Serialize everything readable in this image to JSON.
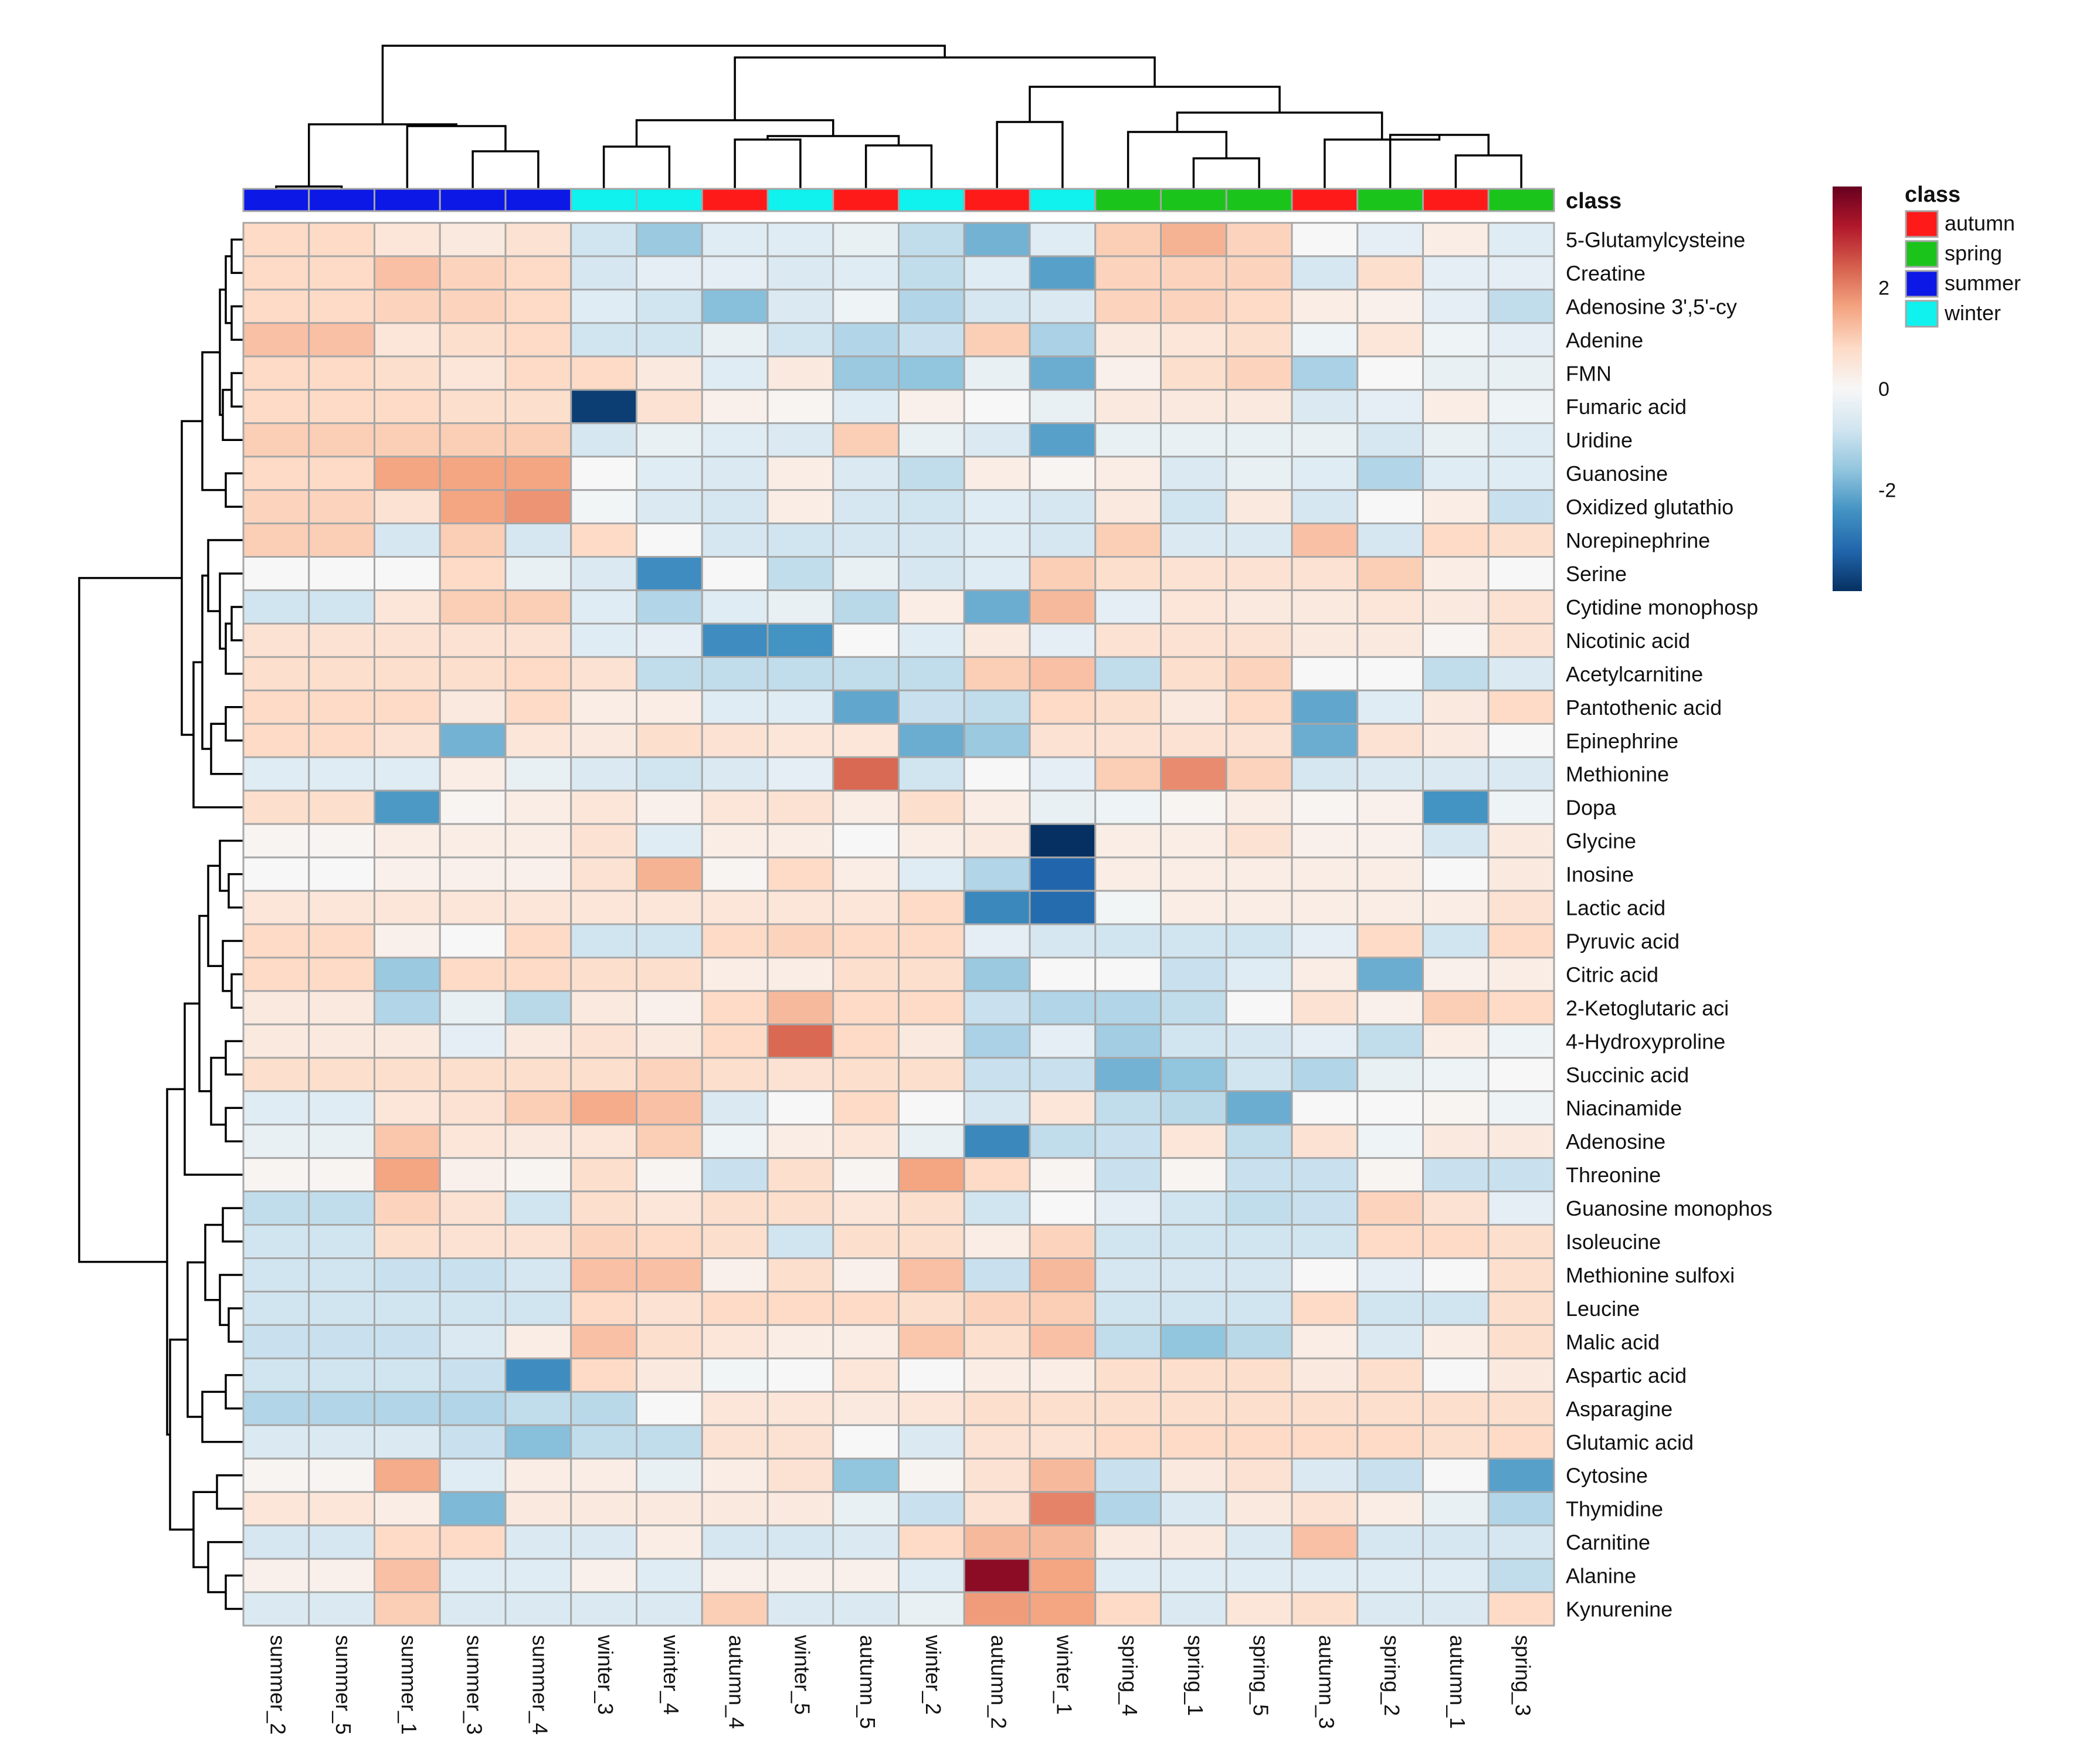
{
  "chart_data": {
    "type": "heatmap",
    "title": "",
    "columns": [
      "summer_2",
      "summer_5",
      "summer_1",
      "summer_3",
      "summer_4",
      "winter_3",
      "winter_4",
      "autumn_4",
      "winter_5",
      "autumn_5",
      "winter_2",
      "autumn_2",
      "winter_1",
      "spring_4",
      "spring_1",
      "spring_5",
      "autumn_3",
      "spring_2",
      "autumn_1",
      "spring_3"
    ],
    "column_classes": [
      "summer",
      "summer",
      "summer",
      "summer",
      "summer",
      "winter",
      "winter",
      "autumn",
      "winter",
      "autumn",
      "winter",
      "autumn",
      "winter",
      "spring",
      "spring",
      "spring",
      "autumn",
      "spring",
      "autumn",
      "spring"
    ],
    "rows": [
      "5-Glutamylcysteine",
      "Creatine",
      "Adenosine 3',5'-cy",
      "Adenine",
      "FMN",
      "Fumaric acid",
      "Uridine",
      "Guanosine",
      "Oxidized glutathio",
      "Norepinephrine",
      "Serine",
      "Cytidine monophosp",
      "Nicotinic acid",
      "Acetylcarnitine",
      "Pantothenic acid",
      "Epinephrine",
      "Methionine",
      "Dopa",
      "Glycine",
      "Inosine",
      "Lactic acid",
      "Pyruvic acid",
      "Citric acid",
      "2-Ketoglutaric aci",
      "4-Hydroxyproline",
      "Succinic acid",
      "Niacinamide",
      "Adenosine",
      "Threonine",
      "Guanosine monophos",
      "Isoleucine",
      "Methionine sulfoxi",
      "Leucine",
      "Malic acid",
      "Aspartic acid",
      "Asparagine",
      "Glutamic acid",
      "Cytosine",
      "Thymidine",
      "Carnitine",
      "Alanine",
      "Kynurenine"
    ],
    "values": [
      [
        0.8,
        0.8,
        0.5,
        0.4,
        0.6,
        -0.8,
        -1.5,
        -0.5,
        -0.5,
        -0.3,
        -1.0,
        -1.9,
        -0.5,
        1.0,
        1.4,
        0.9,
        0,
        -0.4,
        0.3,
        -0.5
      ],
      [
        0.8,
        0.8,
        1.2,
        0.9,
        0.8,
        -0.7,
        -0.4,
        -0.4,
        -0.6,
        -0.5,
        -1.0,
        -0.5,
        -2.2,
        0.9,
        0.9,
        0.9,
        -0.7,
        0.7,
        -0.4,
        -0.4
      ],
      [
        0.8,
        0.8,
        0.9,
        0.9,
        0.8,
        -0.5,
        -0.8,
        -1.7,
        -0.6,
        -0.2,
        -1.2,
        -0.7,
        -0.6,
        0.9,
        0.9,
        0.8,
        0.3,
        0.2,
        -0.4,
        -1.0
      ],
      [
        1.2,
        1.2,
        0.5,
        0.7,
        0.8,
        -0.8,
        -0.8,
        -0.3,
        -0.8,
        -1.2,
        -0.9,
        1.0,
        -1.3,
        0.4,
        0.5,
        0.7,
        -0.2,
        0.5,
        -0.2,
        -0.4
      ],
      [
        0.8,
        0.8,
        0.7,
        0.5,
        0.8,
        0.8,
        0.4,
        -0.5,
        0.4,
        -1.5,
        -1.6,
        -0.3,
        -2.0,
        0.2,
        0.7,
        0.9,
        -1.3,
        0,
        -0.3,
        -0.3
      ],
      [
        0.8,
        0.8,
        0.8,
        0.7,
        0.7,
        -3.8,
        0.6,
        0.2,
        0.1,
        -0.5,
        0.2,
        0,
        -0.3,
        0.4,
        0.4,
        0.4,
        -0.6,
        -0.4,
        0.3,
        -0.2
      ],
      [
        1.0,
        1.0,
        1.0,
        1.0,
        1.0,
        -0.7,
        -0.3,
        -0.5,
        -0.6,
        1.0,
        -0.3,
        -0.6,
        -2.2,
        -0.3,
        -0.3,
        -0.3,
        -0.3,
        -0.7,
        -0.3,
        -0.5
      ],
      [
        0.8,
        0.8,
        1.6,
        1.6,
        1.6,
        0,
        -0.5,
        -0.6,
        0.3,
        -0.6,
        -1.0,
        0.3,
        0.1,
        0.3,
        -0.6,
        -0.3,
        -0.5,
        -1.2,
        -0.5,
        -0.5
      ],
      [
        0.9,
        0.9,
        0.6,
        1.6,
        1.8,
        -0.1,
        -0.6,
        -0.7,
        0.3,
        -0.7,
        -0.8,
        -0.5,
        -0.7,
        0.4,
        -0.8,
        0.4,
        -0.7,
        0,
        0.3,
        -0.9
      ],
      [
        1.0,
        1.0,
        -0.7,
        1.0,
        -0.7,
        0.8,
        0,
        -0.7,
        -0.8,
        -0.7,
        -0.7,
        -0.5,
        -0.7,
        1.0,
        -0.6,
        -0.6,
        1.2,
        -0.7,
        0.8,
        0.7
      ],
      [
        0,
        0,
        0,
        0.8,
        -0.3,
        -0.6,
        -2.5,
        0,
        -1.0,
        -0.3,
        -0.7,
        -0.5,
        1.0,
        0.7,
        0.6,
        0.6,
        0.6,
        1.0,
        0.3,
        0
      ],
      [
        -0.8,
        -0.8,
        0.5,
        1.0,
        1.0,
        -0.5,
        -1.2,
        -0.5,
        -0.3,
        -1.1,
        0.3,
        -2.0,
        1.3,
        -0.4,
        0.5,
        0.4,
        0.4,
        0.5,
        0.4,
        0.6
      ],
      [
        0.6,
        0.6,
        0.6,
        0.6,
        0.6,
        -0.5,
        -0.4,
        -2.5,
        -2.4,
        0,
        -0.5,
        0.4,
        -0.4,
        0.6,
        0.6,
        0.6,
        0.4,
        0.4,
        0.1,
        0.6
      ],
      [
        0.7,
        0.7,
        0.7,
        0.7,
        0.8,
        0.6,
        -1.0,
        -1.0,
        -1.0,
        -1.0,
        -1.0,
        1.0,
        1.2,
        -1.0,
        0.7,
        0.9,
        0,
        0,
        -1.0,
        -0.6
      ],
      [
        0.8,
        0.8,
        0.8,
        0.4,
        0.8,
        0.3,
        0.3,
        -0.5,
        -0.5,
        -2.1,
        -0.9,
        -1.0,
        0.8,
        0.7,
        0.4,
        0.8,
        -2.1,
        -0.5,
        0.4,
        0.8
      ],
      [
        0.8,
        0.8,
        0.6,
        -1.9,
        0.5,
        0.4,
        0.7,
        0.6,
        0.5,
        0.5,
        -2.0,
        -1.5,
        0.6,
        0.6,
        0.6,
        0.6,
        -2.0,
        0.6,
        0.4,
        0
      ],
      [
        -0.5,
        -0.5,
        -0.5,
        0.3,
        -0.3,
        -0.6,
        -0.8,
        -0.6,
        -0.4,
        2.3,
        -0.8,
        0,
        -0.4,
        1.0,
        1.9,
        0.9,
        -0.7,
        -0.6,
        -0.6,
        -0.6
      ],
      [
        0.7,
        0.7,
        -2.3,
        0.1,
        0.3,
        0.5,
        0.2,
        0.5,
        0.6,
        0.3,
        0.7,
        0.3,
        -0.3,
        -0.2,
        0.1,
        0.3,
        0.1,
        0.2,
        -2.4,
        -0.2
      ],
      [
        0.1,
        0.1,
        0.3,
        0.3,
        0.3,
        0.6,
        -0.5,
        0.3,
        0.3,
        0,
        0.3,
        0.4,
        -4.2,
        0.3,
        0.3,
        0.6,
        0.2,
        0.2,
        -0.7,
        0.4
      ],
      [
        0,
        0,
        0.2,
        0.2,
        0.2,
        0.6,
        1.4,
        0.1,
        0.8,
        0.3,
        -0.5,
        -1.2,
        -3.2,
        0.3,
        0.3,
        0.3,
        0.3,
        0.3,
        0,
        0.4
      ],
      [
        0.5,
        0.5,
        0.5,
        0.5,
        0.5,
        0.5,
        0.5,
        0.5,
        0.5,
        0.5,
        0.8,
        -2.6,
        -3.1,
        -0.1,
        0.3,
        0.3,
        0.3,
        0.3,
        0.3,
        0.6
      ],
      [
        0.8,
        0.8,
        0.2,
        0,
        0.8,
        -0.8,
        -0.8,
        0.8,
        0.9,
        0.8,
        0.8,
        -0.4,
        -0.7,
        -0.8,
        -0.8,
        -0.8,
        -0.4,
        0.8,
        -0.8,
        0.8
      ],
      [
        0.8,
        0.8,
        -1.5,
        0.8,
        0.8,
        0.7,
        0.7,
        0.3,
        0.3,
        0.7,
        0.7,
        -1.5,
        0,
        0,
        -0.9,
        -0.5,
        0.3,
        -2.0,
        0.2,
        0.3
      ],
      [
        0.4,
        0.4,
        -1.2,
        -0.3,
        -1.1,
        0.4,
        0.2,
        0.8,
        1.3,
        0.8,
        0.8,
        -0.9,
        -1.2,
        -1.2,
        -1.0,
        0,
        0.6,
        0.2,
        1.0,
        0.8
      ],
      [
        0.4,
        0.4,
        0.4,
        -0.4,
        0.4,
        0.6,
        0.4,
        0.8,
        2.3,
        0.8,
        0.4,
        -1.3,
        -0.4,
        -1.4,
        -0.8,
        -0.7,
        -0.4,
        -1.0,
        0.3,
        -0.2
      ],
      [
        0.7,
        0.7,
        0.7,
        0.7,
        0.7,
        0.7,
        0.9,
        0.7,
        0.6,
        0.7,
        0.7,
        -0.9,
        -0.9,
        -1.9,
        -1.6,
        -0.8,
        -1.2,
        -0.3,
        -0.2,
        0
      ],
      [
        -0.5,
        -0.5,
        0.5,
        0.6,
        1.0,
        1.5,
        1.2,
        -0.6,
        0,
        0.8,
        0,
        -0.7,
        0.5,
        -1.0,
        -1.1,
        -2.0,
        0,
        0,
        0.1,
        -0.2
      ],
      [
        -0.3,
        -0.3,
        1.1,
        0.5,
        0.4,
        0.5,
        1.0,
        -0.2,
        0.3,
        0.5,
        -0.3,
        -2.6,
        -1.0,
        -0.9,
        0.5,
        -1.0,
        0.6,
        -0.2,
        0.4,
        0.4
      ],
      [
        0.1,
        0.1,
        1.6,
        0.2,
        0.1,
        0.7,
        0.1,
        -0.9,
        0.7,
        0.1,
        1.6,
        0.8,
        0.1,
        -0.9,
        0.1,
        -0.9,
        -0.9,
        0.1,
        -0.9,
        -0.9
      ],
      [
        -1.0,
        -1.0,
        0.9,
        0.6,
        -0.8,
        0.7,
        0.5,
        0.7,
        0.7,
        0.5,
        0.7,
        -0.8,
        0,
        -0.4,
        -0.8,
        -1.0,
        -0.9,
        0.9,
        0.6,
        -0.4
      ],
      [
        -0.8,
        -0.8,
        0.7,
        0.6,
        0.6,
        0.9,
        0.8,
        0.7,
        -0.8,
        0.7,
        0.7,
        0.3,
        0.9,
        -0.8,
        -0.8,
        -0.8,
        -0.8,
        0.8,
        0.8,
        0.7
      ],
      [
        -0.8,
        -0.8,
        -0.9,
        -0.9,
        -0.7,
        1.2,
        1.2,
        0.2,
        0.7,
        0.2,
        1.2,
        -0.9,
        1.3,
        -0.7,
        -0.7,
        -0.7,
        0,
        -0.4,
        0,
        0.7
      ],
      [
        -0.8,
        -0.8,
        -0.8,
        -0.8,
        -0.8,
        0.8,
        0.6,
        0.8,
        0.8,
        0.8,
        0.7,
        0.9,
        1.0,
        -0.8,
        -0.8,
        -0.8,
        0.8,
        -0.8,
        -0.8,
        0.7
      ],
      [
        -0.9,
        -0.9,
        -0.9,
        -0.6,
        0.3,
        1.2,
        0.7,
        0.5,
        0.3,
        0.3,
        1.1,
        0.7,
        1.2,
        -1.0,
        -1.6,
        -1.1,
        0.3,
        -0.6,
        0.3,
        0.7
      ],
      [
        -0.8,
        -0.8,
        -0.8,
        -0.9,
        -2.5,
        0.8,
        0.4,
        -0.1,
        0,
        0.5,
        0,
        0.3,
        0.3,
        0.7,
        0.7,
        0.7,
        0.4,
        0.7,
        0,
        0.4
      ],
      [
        -1.2,
        -1.2,
        -1.2,
        -1.2,
        -1.0,
        -1.1,
        0,
        0.5,
        0.5,
        0.4,
        0.5,
        0.7,
        0.7,
        0.7,
        0.7,
        0.7,
        0.7,
        0.7,
        0.7,
        0.7
      ],
      [
        -0.6,
        -0.6,
        -0.6,
        -0.9,
        -1.7,
        -1.0,
        -1.0,
        0.6,
        0.6,
        0,
        -0.6,
        0.6,
        0.6,
        0.8,
        0.8,
        0.8,
        0.8,
        0.8,
        0.7,
        0.8
      ],
      [
        0.1,
        0.1,
        1.5,
        -0.5,
        0.3,
        0.3,
        -0.3,
        0.3,
        0.6,
        -1.6,
        0.1,
        0.6,
        1.3,
        -0.9,
        0.4,
        0.6,
        -0.6,
        -0.9,
        0,
        -2.2
      ],
      [
        0.5,
        0.5,
        0.3,
        -1.8,
        0.4,
        0.4,
        0.4,
        0.4,
        0.4,
        -0.3,
        -0.9,
        0.6,
        2.0,
        -1.2,
        -0.6,
        0.4,
        0.6,
        0.3,
        -0.3,
        -1.2
      ],
      [
        -0.7,
        -0.7,
        0.8,
        0.8,
        -0.6,
        -0.6,
        0.3,
        -0.7,
        -0.7,
        -0.6,
        0.8,
        1.3,
        1.3,
        0.4,
        0.4,
        -0.6,
        1.2,
        -0.7,
        -0.7,
        -0.7
      ],
      [
        0.2,
        0.2,
        1.2,
        -0.5,
        -0.5,
        0.2,
        -0.5,
        0.2,
        0.2,
        0.2,
        -0.5,
        3.6,
        1.6,
        -0.5,
        -0.5,
        -0.5,
        -0.5,
        -0.5,
        -0.5,
        -1.0
      ],
      [
        -0.6,
        -0.6,
        1.0,
        -0.6,
        -0.6,
        -0.6,
        -0.6,
        1.0,
        -0.6,
        -0.6,
        -0.3,
        1.7,
        1.6,
        0.8,
        -0.6,
        0.5,
        0.7,
        -0.6,
        -0.6,
        0.8
      ]
    ],
    "class_header_label": "class",
    "legend": {
      "title": "class",
      "items": [
        {
          "label": "autumn",
          "color": "#ff1a1a"
        },
        {
          "label": "spring",
          "color": "#1bc41b"
        },
        {
          "label": "summer",
          "color": "#0b18e6"
        },
        {
          "label": "winter",
          "color": "#0ff2ee"
        }
      ]
    },
    "colorbar": {
      "range": [
        -4,
        4
      ],
      "ticks": [
        2,
        0,
        -2
      ],
      "colors": [
        "#053061",
        "#2166ac",
        "#4393c3",
        "#92c5de",
        "#d1e5f0",
        "#f7f7f7",
        "#fddbc7",
        "#f4a582",
        "#d6604d",
        "#b2182b",
        "#67001f"
      ]
    },
    "grid_color": "#a6a6a6"
  }
}
